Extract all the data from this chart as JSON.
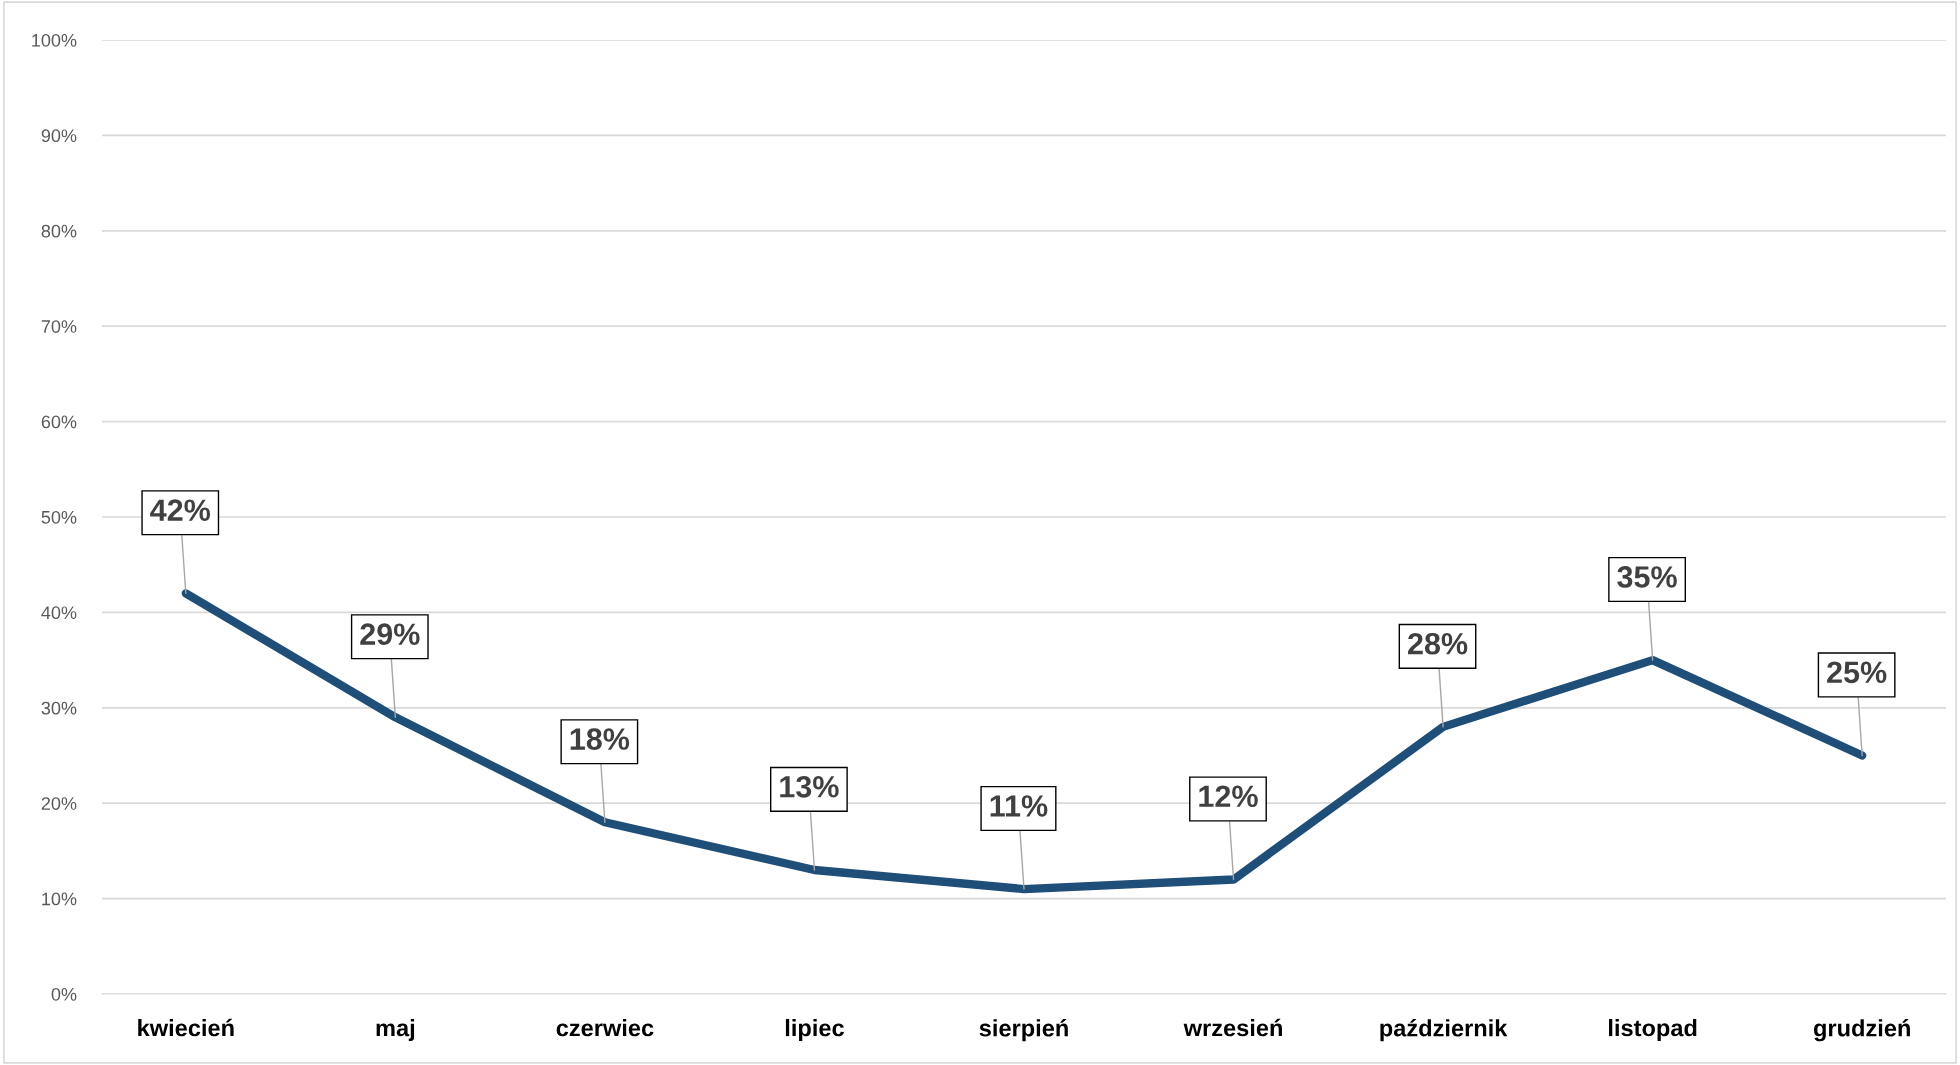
{
  "chart_data": {
    "type": "line",
    "categories": [
      "kwiecień",
      "maj",
      "czerwiec",
      "lipiec",
      "sierpień",
      "wrzesień",
      "październik",
      "listopad",
      "grudzień"
    ],
    "series": [
      {
        "color": "#1f4e79",
        "values": [
          42,
          29,
          18,
          13,
          11,
          12,
          28,
          35,
          25
        ],
        "value_labels": [
          "42%",
          "29%",
          "18%",
          "13%",
          "11%",
          "12%",
          "28%",
          "35%",
          "25%"
        ]
      }
    ],
    "ylim": [
      0,
      100
    ],
    "yticks": [
      {
        "value": 0,
        "label": "0%"
      },
      {
        "value": 10,
        "label": "10%"
      },
      {
        "value": 20,
        "label": "20%"
      },
      {
        "value": 30,
        "label": "30%"
      },
      {
        "value": 40,
        "label": "40%"
      },
      {
        "value": 50,
        "label": "50%"
      },
      {
        "value": 60,
        "label": "60%"
      },
      {
        "value": 70,
        "label": "70%"
      },
      {
        "value": 80,
        "label": "80%"
      },
      {
        "value": 90,
        "label": "90%"
      },
      {
        "value": 100,
        "label": "100%"
      }
    ],
    "grid": "y",
    "legend": false,
    "marker": "none",
    "line_style": "solid"
  }
}
